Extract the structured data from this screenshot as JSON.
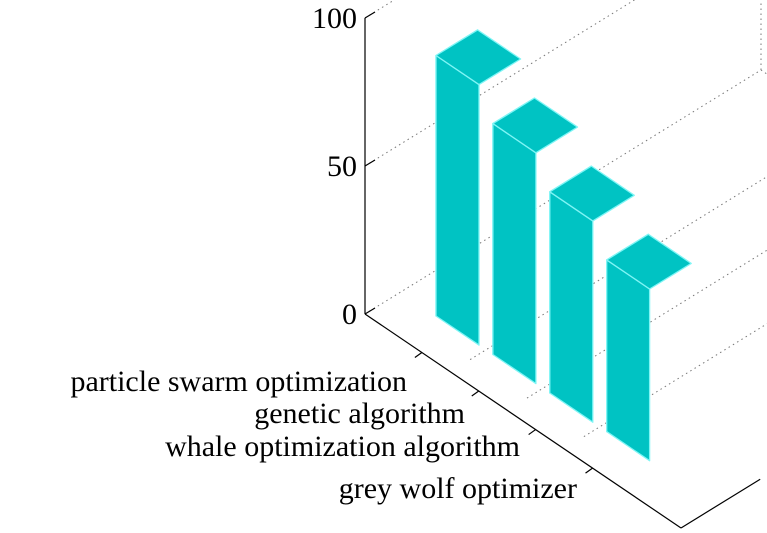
{
  "chart_data": {
    "type": "bar",
    "style": "3d",
    "categories": [
      "particle swarm optimization",
      "genetic algorithm",
      "whale optimization algorithm",
      "grey wolf optimizer"
    ],
    "values": [
      88,
      78,
      68,
      58
    ],
    "ylim": [
      0,
      100
    ],
    "yticks": [
      "0",
      "50",
      "100"
    ],
    "grid": "dotted",
    "bar_color": "#00c3c3",
    "edge_color": "#7ff5f5"
  }
}
